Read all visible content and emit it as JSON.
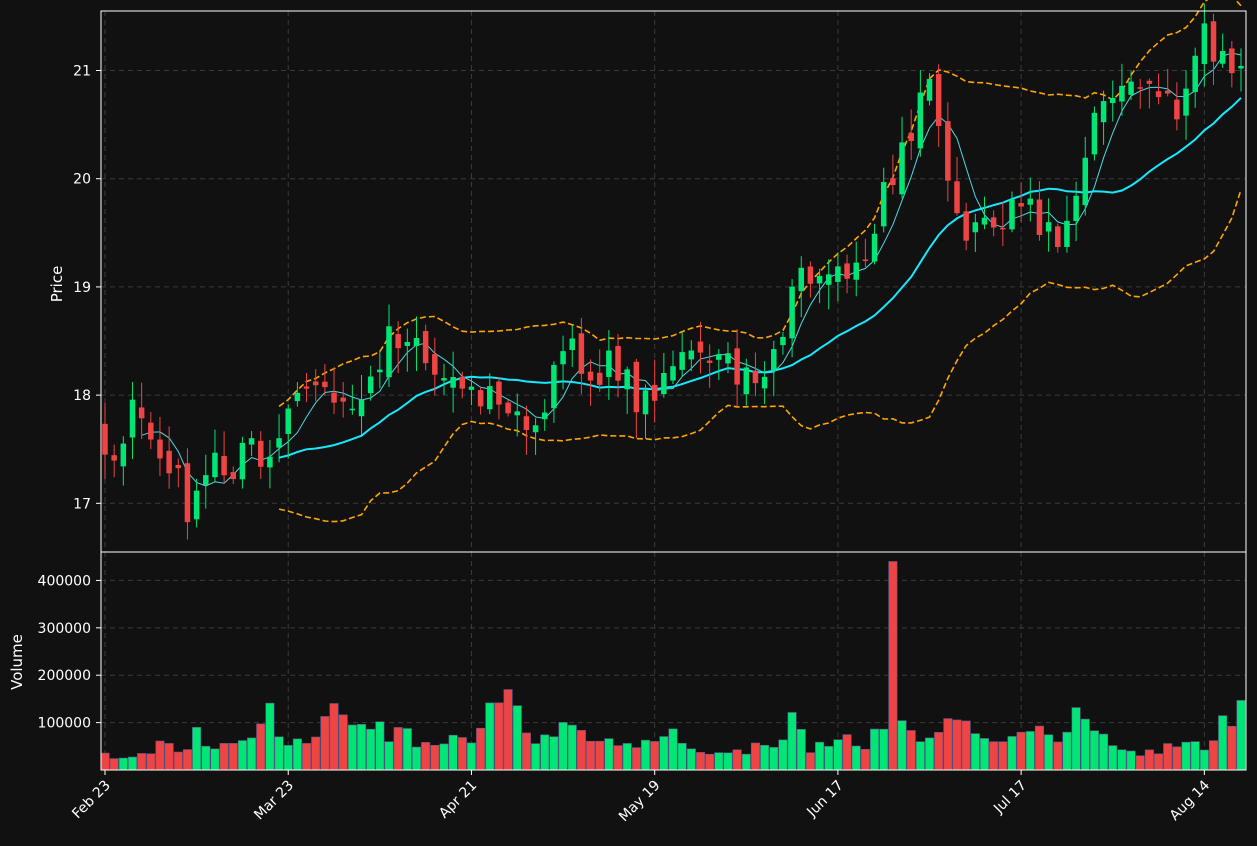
{
  "chart_data": {
    "type": "candlestick",
    "title": "",
    "price_panel": {
      "ylabel": "Price",
      "ylim": [
        16.55,
        21.55
      ],
      "yticks": [
        17,
        18,
        19,
        20,
        21
      ]
    },
    "volume_panel": {
      "ylabel": "Volume",
      "ylim": [
        0,
        460000
      ],
      "yticks": [
        100000,
        200000,
        300000,
        400000
      ]
    },
    "x_ticks": [
      {
        "label": "Feb 23",
        "index": 0
      },
      {
        "label": "Mar 23",
        "index": 20
      },
      {
        "label": "Apr 21",
        "index": 40
      },
      {
        "label": "May 19",
        "index": 60
      },
      {
        "label": "Jun 17",
        "index": 80
      },
      {
        "label": "Jul 17",
        "index": 100
      },
      {
        "label": "Aug 14",
        "index": 120
      }
    ],
    "n_bars": 125,
    "colors": {
      "background": "#111111",
      "up": "#00e676",
      "down": "#ef4444",
      "ma_fast": "#4dd8e0",
      "ma_slow": "#18e8ff",
      "bands": "#ffa500",
      "grid": "#3a3a3a",
      "axis": "#ffffff"
    },
    "close_anchors": [
      [
        0,
        17.3
      ],
      [
        3,
        17.9
      ],
      [
        5,
        17.7
      ],
      [
        8,
        17.2
      ],
      [
        9,
        16.95
      ],
      [
        11,
        17.35
      ],
      [
        14,
        17.35
      ],
      [
        17,
        17.5
      ],
      [
        19,
        17.6
      ],
      [
        21,
        18.0
      ],
      [
        24,
        17.95
      ],
      [
        28,
        18.05
      ],
      [
        31,
        18.5
      ],
      [
        34,
        18.4
      ],
      [
        37,
        18.3
      ],
      [
        40,
        18.0
      ],
      [
        44,
        17.9
      ],
      [
        46,
        17.75
      ],
      [
        48,
        17.95
      ],
      [
        51,
        18.5
      ],
      [
        53,
        18.2
      ],
      [
        56,
        18.3
      ],
      [
        58,
        17.9
      ],
      [
        61,
        18.2
      ],
      [
        64,
        18.4
      ],
      [
        67,
        18.3
      ],
      [
        70,
        18.2
      ],
      [
        73,
        18.4
      ],
      [
        76,
        19.2
      ],
      [
        79,
        19.0
      ],
      [
        82,
        19.1
      ],
      [
        84,
        19.5
      ],
      [
        86,
        20.1
      ],
      [
        88,
        20.5
      ],
      [
        90,
        20.8
      ],
      [
        92,
        20.0
      ],
      [
        94,
        19.5
      ],
      [
        96,
        19.7
      ],
      [
        98,
        19.7
      ],
      [
        100,
        19.8
      ],
      [
        102,
        19.6
      ],
      [
        103,
        19.6
      ],
      [
        105,
        19.45
      ],
      [
        106,
        20.0
      ],
      [
        108,
        20.5
      ],
      [
        110,
        20.6
      ],
      [
        112,
        20.8
      ],
      [
        115,
        20.9
      ],
      [
        117,
        20.7
      ],
      [
        119,
        21.0
      ],
      [
        120,
        21.4
      ],
      [
        121,
        21.2
      ],
      [
        123,
        21.1
      ],
      [
        124,
        21.15
      ]
    ],
    "volume_anchors": [
      [
        0,
        45000
      ],
      [
        2,
        20000
      ],
      [
        5,
        40000
      ],
      [
        6,
        65000
      ],
      [
        8,
        35000
      ],
      [
        10,
        70000
      ],
      [
        12,
        60000
      ],
      [
        15,
        65000
      ],
      [
        17,
        75000
      ],
      [
        18,
        160000
      ],
      [
        19,
        85000
      ],
      [
        22,
        45000
      ],
      [
        24,
        130000
      ],
      [
        28,
        110000
      ],
      [
        32,
        75000
      ],
      [
        36,
        60000
      ],
      [
        40,
        70000
      ],
      [
        44,
        150000
      ],
      [
        46,
        65000
      ],
      [
        50,
        80000
      ],
      [
        55,
        55000
      ],
      [
        60,
        55000
      ],
      [
        62,
        85000
      ],
      [
        65,
        35000
      ],
      [
        70,
        40000
      ],
      [
        74,
        60000
      ],
      [
        75,
        120000
      ],
      [
        77,
        40000
      ],
      [
        80,
        70000
      ],
      [
        83,
        60000
      ],
      [
        85,
        110000
      ],
      [
        86,
        440000
      ],
      [
        87,
        95000
      ],
      [
        90,
        80000
      ],
      [
        92,
        115000
      ],
      [
        95,
        70000
      ],
      [
        100,
        70000
      ],
      [
        104,
        80000
      ],
      [
        106,
        110000
      ],
      [
        110,
        45000
      ],
      [
        115,
        40000
      ],
      [
        118,
        55000
      ],
      [
        121,
        50000
      ],
      [
        122,
        110000
      ],
      [
        124,
        115000
      ]
    ],
    "ma_fast_window": 5,
    "ma_slow_window": 20,
    "band_window": 20,
    "band_sigma": 2
  }
}
